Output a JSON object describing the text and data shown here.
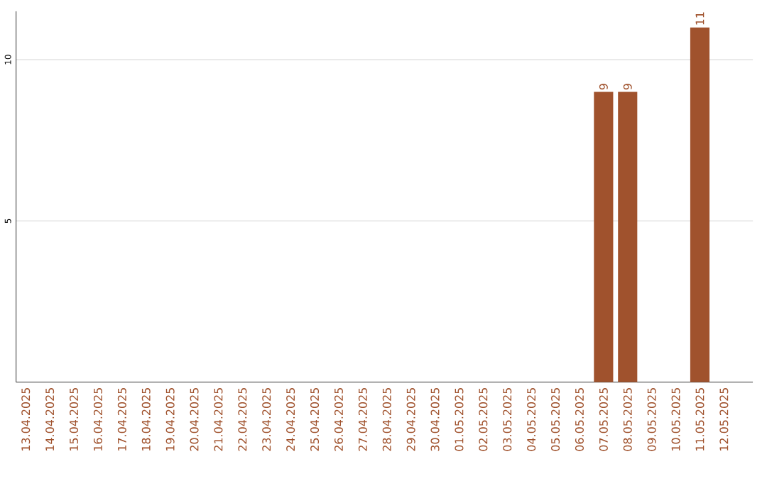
{
  "chart_data": {
    "type": "bar",
    "categories": [
      "13.04.2025",
      "14.04.2025",
      "15.04.2025",
      "16.04.2025",
      "17.04.2025",
      "18.04.2025",
      "19.04.2025",
      "20.04.2025",
      "21.04.2025",
      "22.04.2025",
      "23.04.2025",
      "24.04.2025",
      "25.04.2025",
      "26.04.2025",
      "27.04.2025",
      "28.04.2025",
      "29.04.2025",
      "30.04.2025",
      "01.05.2025",
      "02.05.2025",
      "03.05.2025",
      "04.05.2025",
      "05.05.2025",
      "06.05.2025",
      "07.05.2025",
      "08.05.2025",
      "09.05.2025",
      "10.05.2025",
      "11.05.2025",
      "12.05.2025"
    ],
    "values": [
      0,
      0,
      0,
      0,
      0,
      0,
      0,
      0,
      0,
      0,
      0,
      0,
      0,
      0,
      0,
      0,
      0,
      0,
      0,
      0,
      0,
      0,
      0,
      0,
      9,
      9,
      0,
      0,
      11,
      0
    ],
    "value_labels": [
      null,
      null,
      null,
      null,
      null,
      null,
      null,
      null,
      null,
      null,
      null,
      null,
      null,
      null,
      null,
      null,
      null,
      null,
      null,
      null,
      null,
      null,
      null,
      null,
      "9",
      "9",
      null,
      null,
      "11",
      null
    ],
    "color": "#a0522d",
    "ylim": [
      0,
      11.5
    ],
    "yticks": [
      5,
      10
    ],
    "grid": "y"
  }
}
